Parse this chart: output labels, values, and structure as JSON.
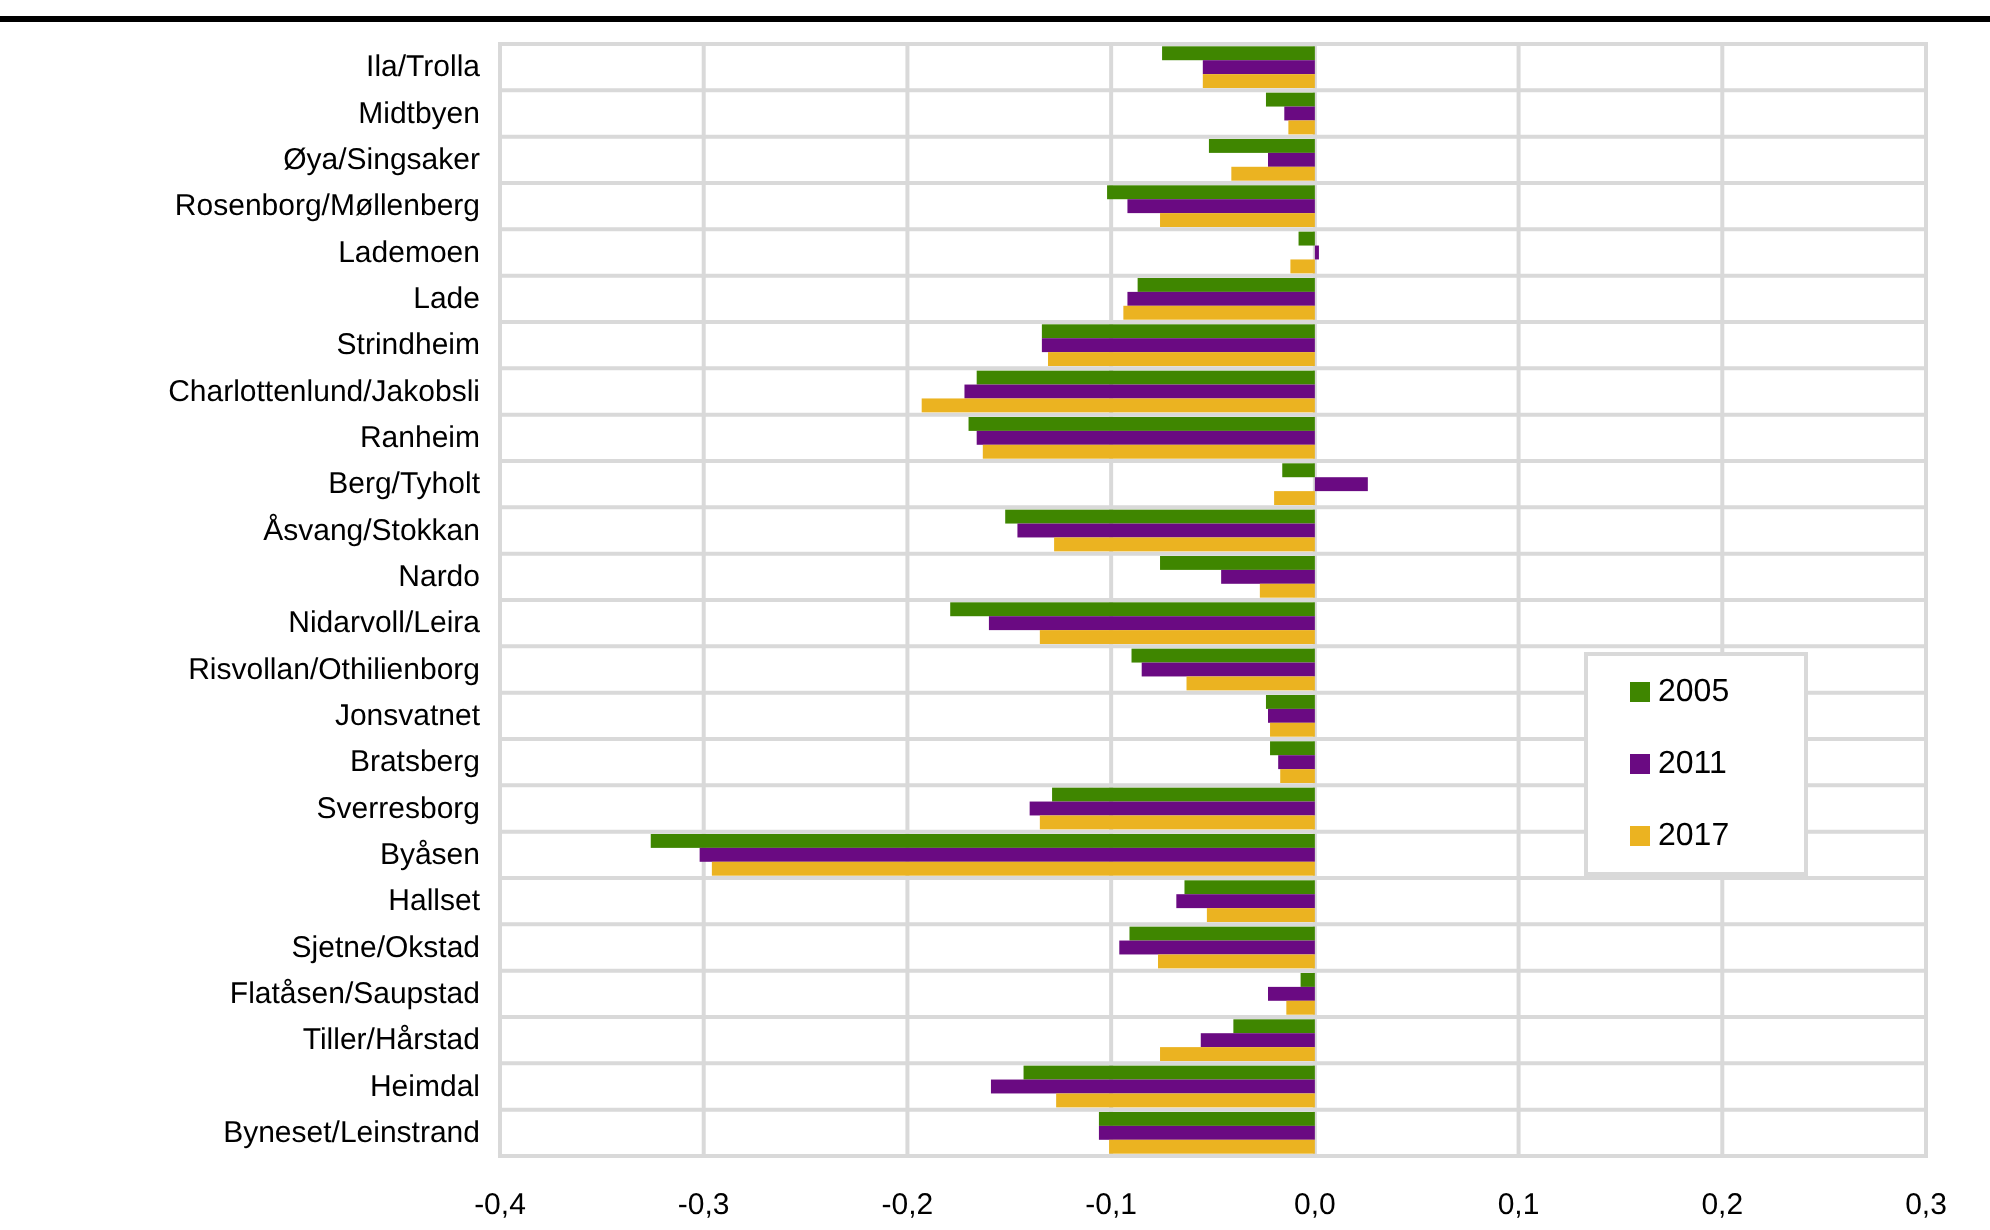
{
  "chart_data": {
    "type": "bar",
    "orientation": "horizontal",
    "categories": [
      "Ila/Trolla",
      "Midtbyen",
      "Øya/Singsaker",
      "Rosenborg/Møllenberg",
      "Lademoen",
      "Lade",
      "Strindheim",
      "Charlottenlund/Jakobsli",
      "Ranheim",
      "Berg/Tyholt",
      "Åsvang/Stokkan",
      "Nardo",
      "Nidarvoll/Leira",
      "Risvollan/Othilienborg",
      "Jonsvatnet",
      "Bratsberg",
      "Sverresborg",
      "Byåsen",
      "Hallset",
      "Sjetne/Okstad",
      "Flatåsen/Saupstad",
      "Tiller/Hårstad",
      "Heimdal",
      "Byneset/Leinstrand"
    ],
    "series": [
      {
        "name": "2005",
        "color": "#3f8600",
        "values": [
          -0.075,
          -0.024,
          -0.052,
          -0.102,
          -0.008,
          -0.087,
          -0.134,
          -0.166,
          -0.17,
          -0.016,
          -0.152,
          -0.076,
          -0.179,
          -0.09,
          -0.024,
          -0.022,
          -0.129,
          -0.326,
          -0.064,
          -0.091,
          -0.007,
          -0.04,
          -0.143,
          -0.106
        ]
      },
      {
        "name": "2011",
        "color": "#6a0a82",
        "values": [
          -0.055,
          -0.015,
          -0.023,
          -0.092,
          0.002,
          -0.092,
          -0.134,
          -0.172,
          -0.166,
          0.026,
          -0.146,
          -0.046,
          -0.16,
          -0.085,
          -0.023,
          -0.018,
          -0.14,
          -0.302,
          -0.068,
          -0.096,
          -0.023,
          -0.056,
          -0.159,
          -0.106
        ]
      },
      {
        "name": "2017",
        "color": "#ebb321",
        "values": [
          -0.055,
          -0.013,
          -0.041,
          -0.076,
          -0.012,
          -0.094,
          -0.131,
          -0.193,
          -0.163,
          -0.02,
          -0.128,
          -0.027,
          -0.135,
          -0.063,
          -0.022,
          -0.017,
          -0.135,
          -0.296,
          -0.053,
          -0.077,
          -0.014,
          -0.076,
          -0.127,
          -0.101
        ]
      }
    ],
    "xlim": [
      -0.4,
      0.3
    ],
    "xticks": [
      {
        "value": -0.4,
        "label": "-0,4"
      },
      {
        "value": -0.3,
        "label": "-0,3"
      },
      {
        "value": -0.2,
        "label": "-0,2"
      },
      {
        "value": -0.1,
        "label": "-0,1"
      },
      {
        "value": 0,
        "label": "0,0"
      },
      {
        "value": 0.1,
        "label": "0,1"
      },
      {
        "value": 0.2,
        "label": "0,2"
      },
      {
        "value": 0.3,
        "label": "0,3"
      }
    ],
    "grid": true,
    "legend": "right"
  }
}
